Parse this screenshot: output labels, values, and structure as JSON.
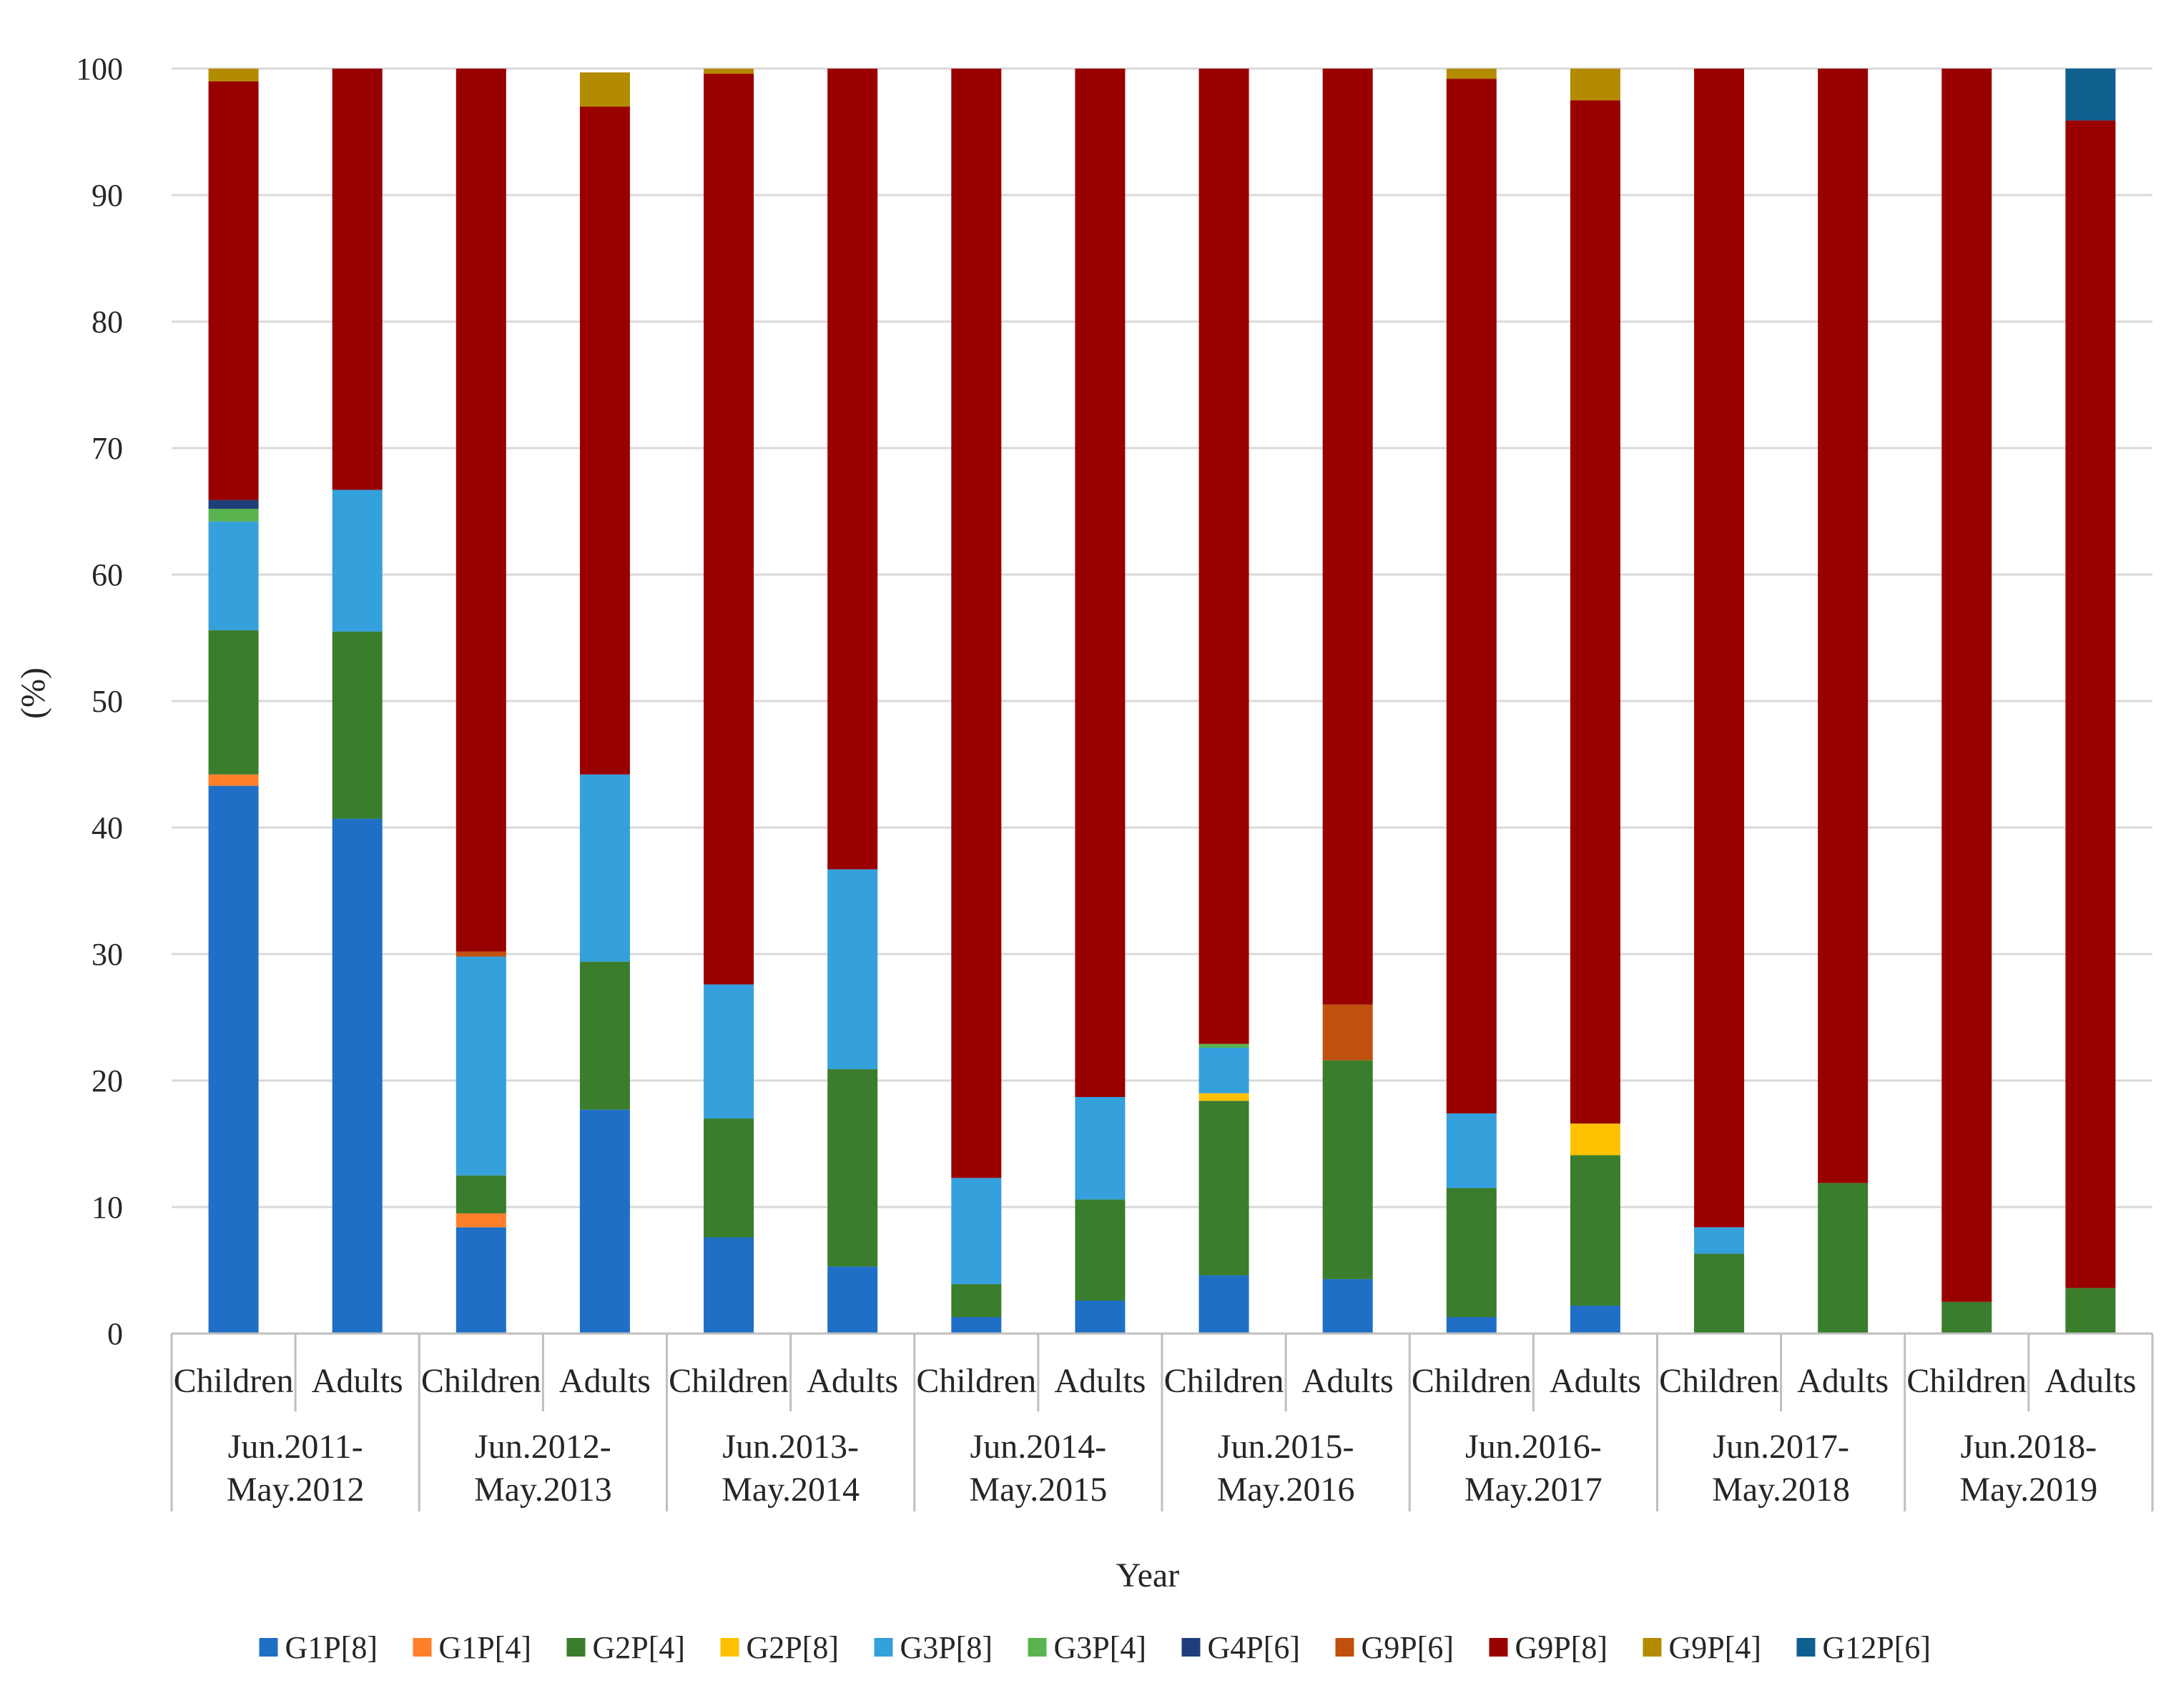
{
  "chart_data": {
    "type": "bar",
    "stacked": true,
    "title": "",
    "xlabel": "Year",
    "ylabel": "(%)",
    "ylim": [
      0,
      100
    ],
    "yticks": [
      0,
      10,
      20,
      30,
      40,
      50,
      60,
      70,
      80,
      90,
      100
    ],
    "grid": true,
    "legend_position": "bottom",
    "groups": [
      {
        "line1": "Jun.2011-",
        "line2": "May.2012"
      },
      {
        "line1": "Jun.2012-",
        "line2": "May.2013"
      },
      {
        "line1": "Jun.2013-",
        "line2": "May.2014"
      },
      {
        "line1": "Jun.2014-",
        "line2": "May.2015"
      },
      {
        "line1": "Jun.2015-",
        "line2": "May.2016"
      },
      {
        "line1": "Jun.2016-",
        "line2": "May.2017"
      },
      {
        "line1": "Jun.2017-",
        "line2": "May.2018"
      },
      {
        "line1": "Jun.2018-",
        "line2": "May.2019"
      }
    ],
    "categories": [
      "Children",
      "Adults",
      "Children",
      "Adults",
      "Children",
      "Adults",
      "Children",
      "Adults",
      "Children",
      "Adults",
      "Children",
      "Adults",
      "Children",
      "Adults",
      "Children",
      "Adults"
    ],
    "series": [
      {
        "name": "G1P[8]",
        "color": "#1f6fc6",
        "values": [
          43.3,
          40.7,
          8.4,
          17.7,
          7.6,
          5.3,
          1.3,
          2.6,
          4.6,
          4.3,
          1.3,
          2.2,
          0,
          0,
          0,
          0
        ]
      },
      {
        "name": "G1P[4]",
        "color": "#ff7f2a",
        "values": [
          0.9,
          0,
          1.1,
          0,
          0,
          0,
          0,
          0,
          0,
          0,
          0,
          0,
          0,
          0,
          0,
          0
        ]
      },
      {
        "name": "G2P[4]",
        "color": "#3a7d2c",
        "values": [
          11.4,
          14.8,
          3.0,
          11.7,
          9.4,
          15.6,
          2.6,
          8.0,
          13.8,
          17.3,
          10.2,
          11.9,
          6.3,
          11.9,
          2.5,
          3.6
        ]
      },
      {
        "name": "G2P[8]",
        "color": "#ffc000",
        "values": [
          0,
          0,
          0,
          0,
          0,
          0,
          0,
          0,
          0.6,
          0,
          0,
          2.5,
          0,
          0,
          0,
          0
        ]
      },
      {
        "name": "G3P[8]",
        "color": "#34a0dc",
        "values": [
          8.6,
          11.2,
          17.3,
          14.8,
          10.6,
          15.8,
          8.4,
          8.1,
          3.6,
          0,
          5.9,
          0,
          2.1,
          0,
          0,
          0
        ]
      },
      {
        "name": "G3P[4]",
        "color": "#5ab34e",
        "values": [
          1.0,
          0,
          0,
          0,
          0,
          0,
          0,
          0,
          0.3,
          0,
          0,
          0,
          0,
          0,
          0,
          0
        ]
      },
      {
        "name": "G4P[6]",
        "color": "#1f3f7a",
        "values": [
          0.7,
          0,
          0,
          0,
          0,
          0,
          0,
          0,
          0,
          0,
          0,
          0,
          0,
          0,
          0,
          0
        ]
      },
      {
        "name": "G9P[6]",
        "color": "#c0500e",
        "values": [
          0,
          0,
          0.4,
          0,
          0,
          0,
          0,
          0,
          0,
          4.4,
          0,
          0,
          0,
          0,
          0,
          0
        ]
      },
      {
        "name": "G9P[8]",
        "color": "#990000",
        "values": [
          33.1,
          33.3,
          69.8,
          52.8,
          72.0,
          63.3,
          87.7,
          81.3,
          77.1,
          74.0,
          81.8,
          80.9,
          91.6,
          88.1,
          97.5,
          92.3
        ]
      },
      {
        "name": "G9P[4]",
        "color": "#b38b00",
        "values": [
          1.0,
          0,
          0,
          2.7,
          0.4,
          0,
          0,
          0,
          0,
          0,
          0.8,
          2.5,
          0,
          0,
          0,
          0
        ]
      },
      {
        "name": "G12P[6]",
        "color": "#0f5f8f",
        "values": [
          0,
          0,
          0,
          0,
          0,
          0,
          0,
          0,
          0,
          0,
          0,
          0,
          0,
          0,
          0,
          4.1
        ]
      }
    ]
  }
}
